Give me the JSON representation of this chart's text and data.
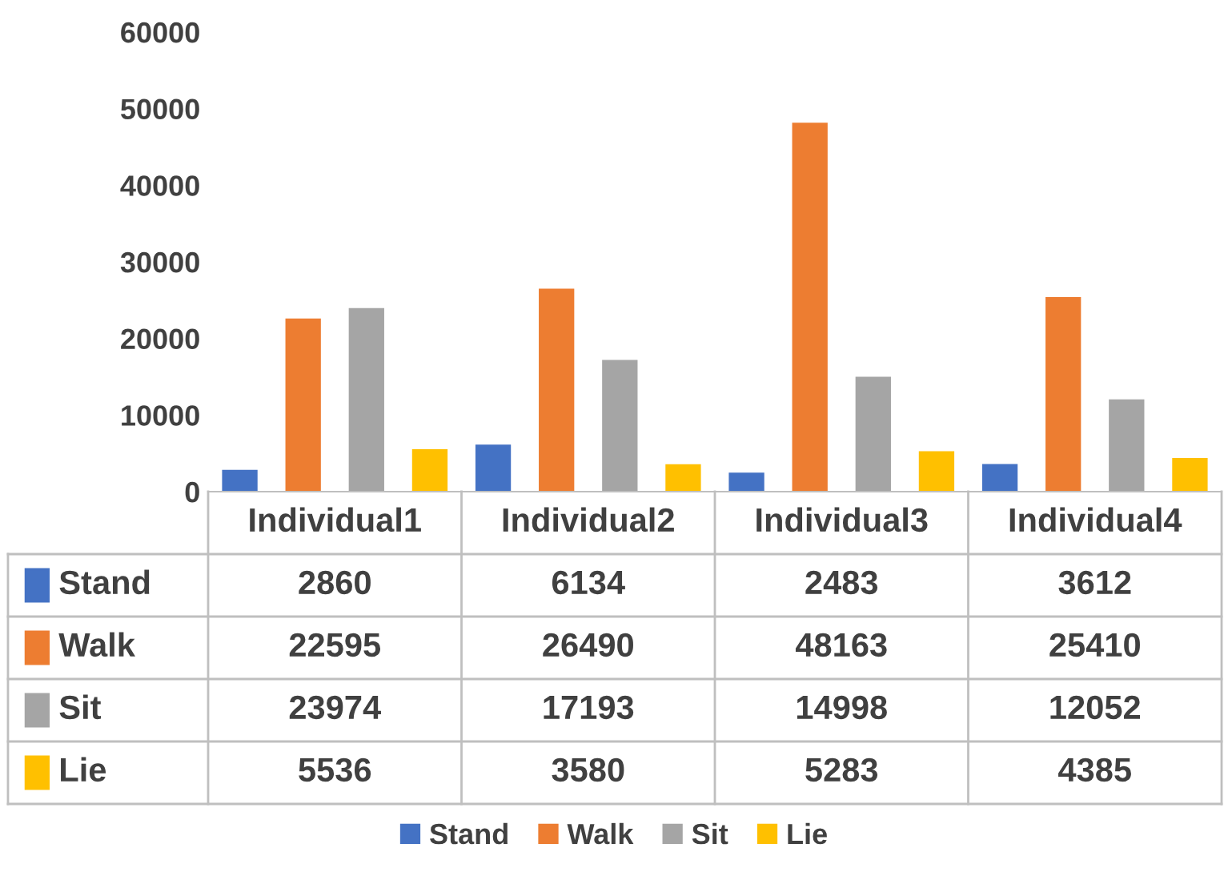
{
  "chart_data": {
    "type": "bar",
    "categories": [
      "Individual1",
      "Individual2",
      "Individual3",
      "Individual4"
    ],
    "series": [
      {
        "name": "Stand",
        "color": "#4472c4",
        "values": [
          2860,
          6134,
          2483,
          3612
        ]
      },
      {
        "name": "Walk",
        "color": "#ed7d31",
        "values": [
          22595,
          26490,
          48163,
          25410
        ]
      },
      {
        "name": "Sit",
        "color": "#a5a5a5",
        "values": [
          23974,
          17193,
          14998,
          12052
        ]
      },
      {
        "name": "Lie",
        "color": "#ffc000",
        "values": [
          5536,
          3580,
          5283,
          4385
        ]
      }
    ],
    "ylim": [
      0,
      60000
    ],
    "yticks": [
      0,
      10000,
      20000,
      30000,
      40000,
      50000,
      60000
    ],
    "grid": false,
    "legend": "bottom",
    "data_labels": true
  }
}
